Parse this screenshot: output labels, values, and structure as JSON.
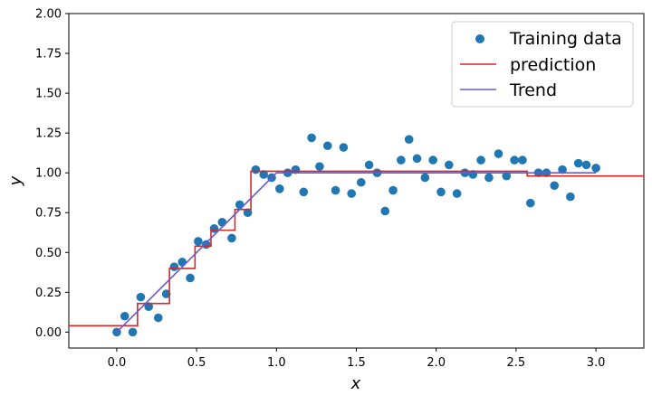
{
  "chart_data": {
    "type": "scatter",
    "title": "",
    "xlabel": "x",
    "ylabel": "y",
    "xlim": [
      -0.3,
      3.3
    ],
    "ylim": [
      -0.1,
      2.0
    ],
    "xticks": [
      0.0,
      0.5,
      1.0,
      1.5,
      2.0,
      2.5,
      3.0
    ],
    "yticks": [
      0.0,
      0.25,
      0.5,
      0.75,
      1.0,
      1.25,
      1.5,
      1.75,
      2.0
    ],
    "xtick_labels": [
      "0.0",
      "0.5",
      "1.0",
      "1.5",
      "2.0",
      "2.5",
      "3.0"
    ],
    "ytick_labels": [
      "0.00",
      "0.25",
      "0.50",
      "0.75",
      "1.00",
      "1.25",
      "1.50",
      "1.75",
      "2.00"
    ],
    "grid": false,
    "legend_position": "top-right",
    "series": [
      {
        "name": "Training data",
        "kind": "scatter",
        "color": "#1f77b4",
        "points": [
          [
            0.0,
            0.0
          ],
          [
            0.05,
            0.1
          ],
          [
            0.1,
            0.0
          ],
          [
            0.15,
            0.22
          ],
          [
            0.2,
            0.16
          ],
          [
            0.26,
            0.09
          ],
          [
            0.31,
            0.24
          ],
          [
            0.36,
            0.41
          ],
          [
            0.41,
            0.44
          ],
          [
            0.46,
            0.34
          ],
          [
            0.51,
            0.57
          ],
          [
            0.56,
            0.55
          ],
          [
            0.61,
            0.65
          ],
          [
            0.66,
            0.69
          ],
          [
            0.72,
            0.59
          ],
          [
            0.77,
            0.8
          ],
          [
            0.82,
            0.75
          ],
          [
            0.87,
            1.02
          ],
          [
            0.92,
            0.99
          ],
          [
            0.97,
            0.97
          ],
          [
            1.02,
            0.9
          ],
          [
            1.07,
            1.0
          ],
          [
            1.12,
            1.02
          ],
          [
            1.17,
            0.88
          ],
          [
            1.22,
            1.22
          ],
          [
            1.27,
            1.04
          ],
          [
            1.32,
            1.17
          ],
          [
            1.37,
            0.89
          ],
          [
            1.42,
            1.16
          ],
          [
            1.47,
            0.87
          ],
          [
            1.53,
            0.94
          ],
          [
            1.58,
            1.05
          ],
          [
            1.63,
            1.0
          ],
          [
            1.68,
            0.76
          ],
          [
            1.73,
            0.89
          ],
          [
            1.78,
            1.08
          ],
          [
            1.83,
            1.21
          ],
          [
            1.88,
            1.09
          ],
          [
            1.93,
            0.97
          ],
          [
            1.98,
            1.08
          ],
          [
            2.03,
            0.88
          ],
          [
            2.08,
            1.05
          ],
          [
            2.13,
            0.87
          ],
          [
            2.18,
            1.0
          ],
          [
            2.23,
            0.99
          ],
          [
            2.28,
            1.08
          ],
          [
            2.33,
            0.97
          ],
          [
            2.39,
            1.12
          ],
          [
            2.44,
            0.98
          ],
          [
            2.49,
            1.08
          ],
          [
            2.54,
            1.08
          ],
          [
            2.59,
            0.81
          ],
          [
            2.64,
            1.0
          ],
          [
            2.69,
            1.0
          ],
          [
            2.74,
            0.92
          ],
          [
            2.79,
            1.02
          ],
          [
            2.84,
            0.85
          ],
          [
            2.89,
            1.06
          ],
          [
            2.94,
            1.05
          ],
          [
            3.0,
            1.03
          ]
        ]
      },
      {
        "name": "prediction",
        "kind": "line",
        "color": "#d62728",
        "points": [
          [
            -0.3,
            0.04
          ],
          [
            0.13,
            0.04
          ],
          [
            0.13,
            0.18
          ],
          [
            0.33,
            0.18
          ],
          [
            0.33,
            0.4
          ],
          [
            0.49,
            0.4
          ],
          [
            0.49,
            0.54
          ],
          [
            0.59,
            0.54
          ],
          [
            0.59,
            0.64
          ],
          [
            0.74,
            0.64
          ],
          [
            0.74,
            0.77
          ],
          [
            0.84,
            0.77
          ],
          [
            0.84,
            1.01
          ],
          [
            2.57,
            1.01
          ],
          [
            2.57,
            0.98
          ],
          [
            3.3,
            0.98
          ]
        ]
      },
      {
        "name": "Trend",
        "kind": "line",
        "color": "#6a5acd",
        "points": [
          [
            0.0,
            0.0
          ],
          [
            1.0,
            1.0
          ],
          [
            3.0,
            1.0
          ]
        ]
      }
    ]
  }
}
